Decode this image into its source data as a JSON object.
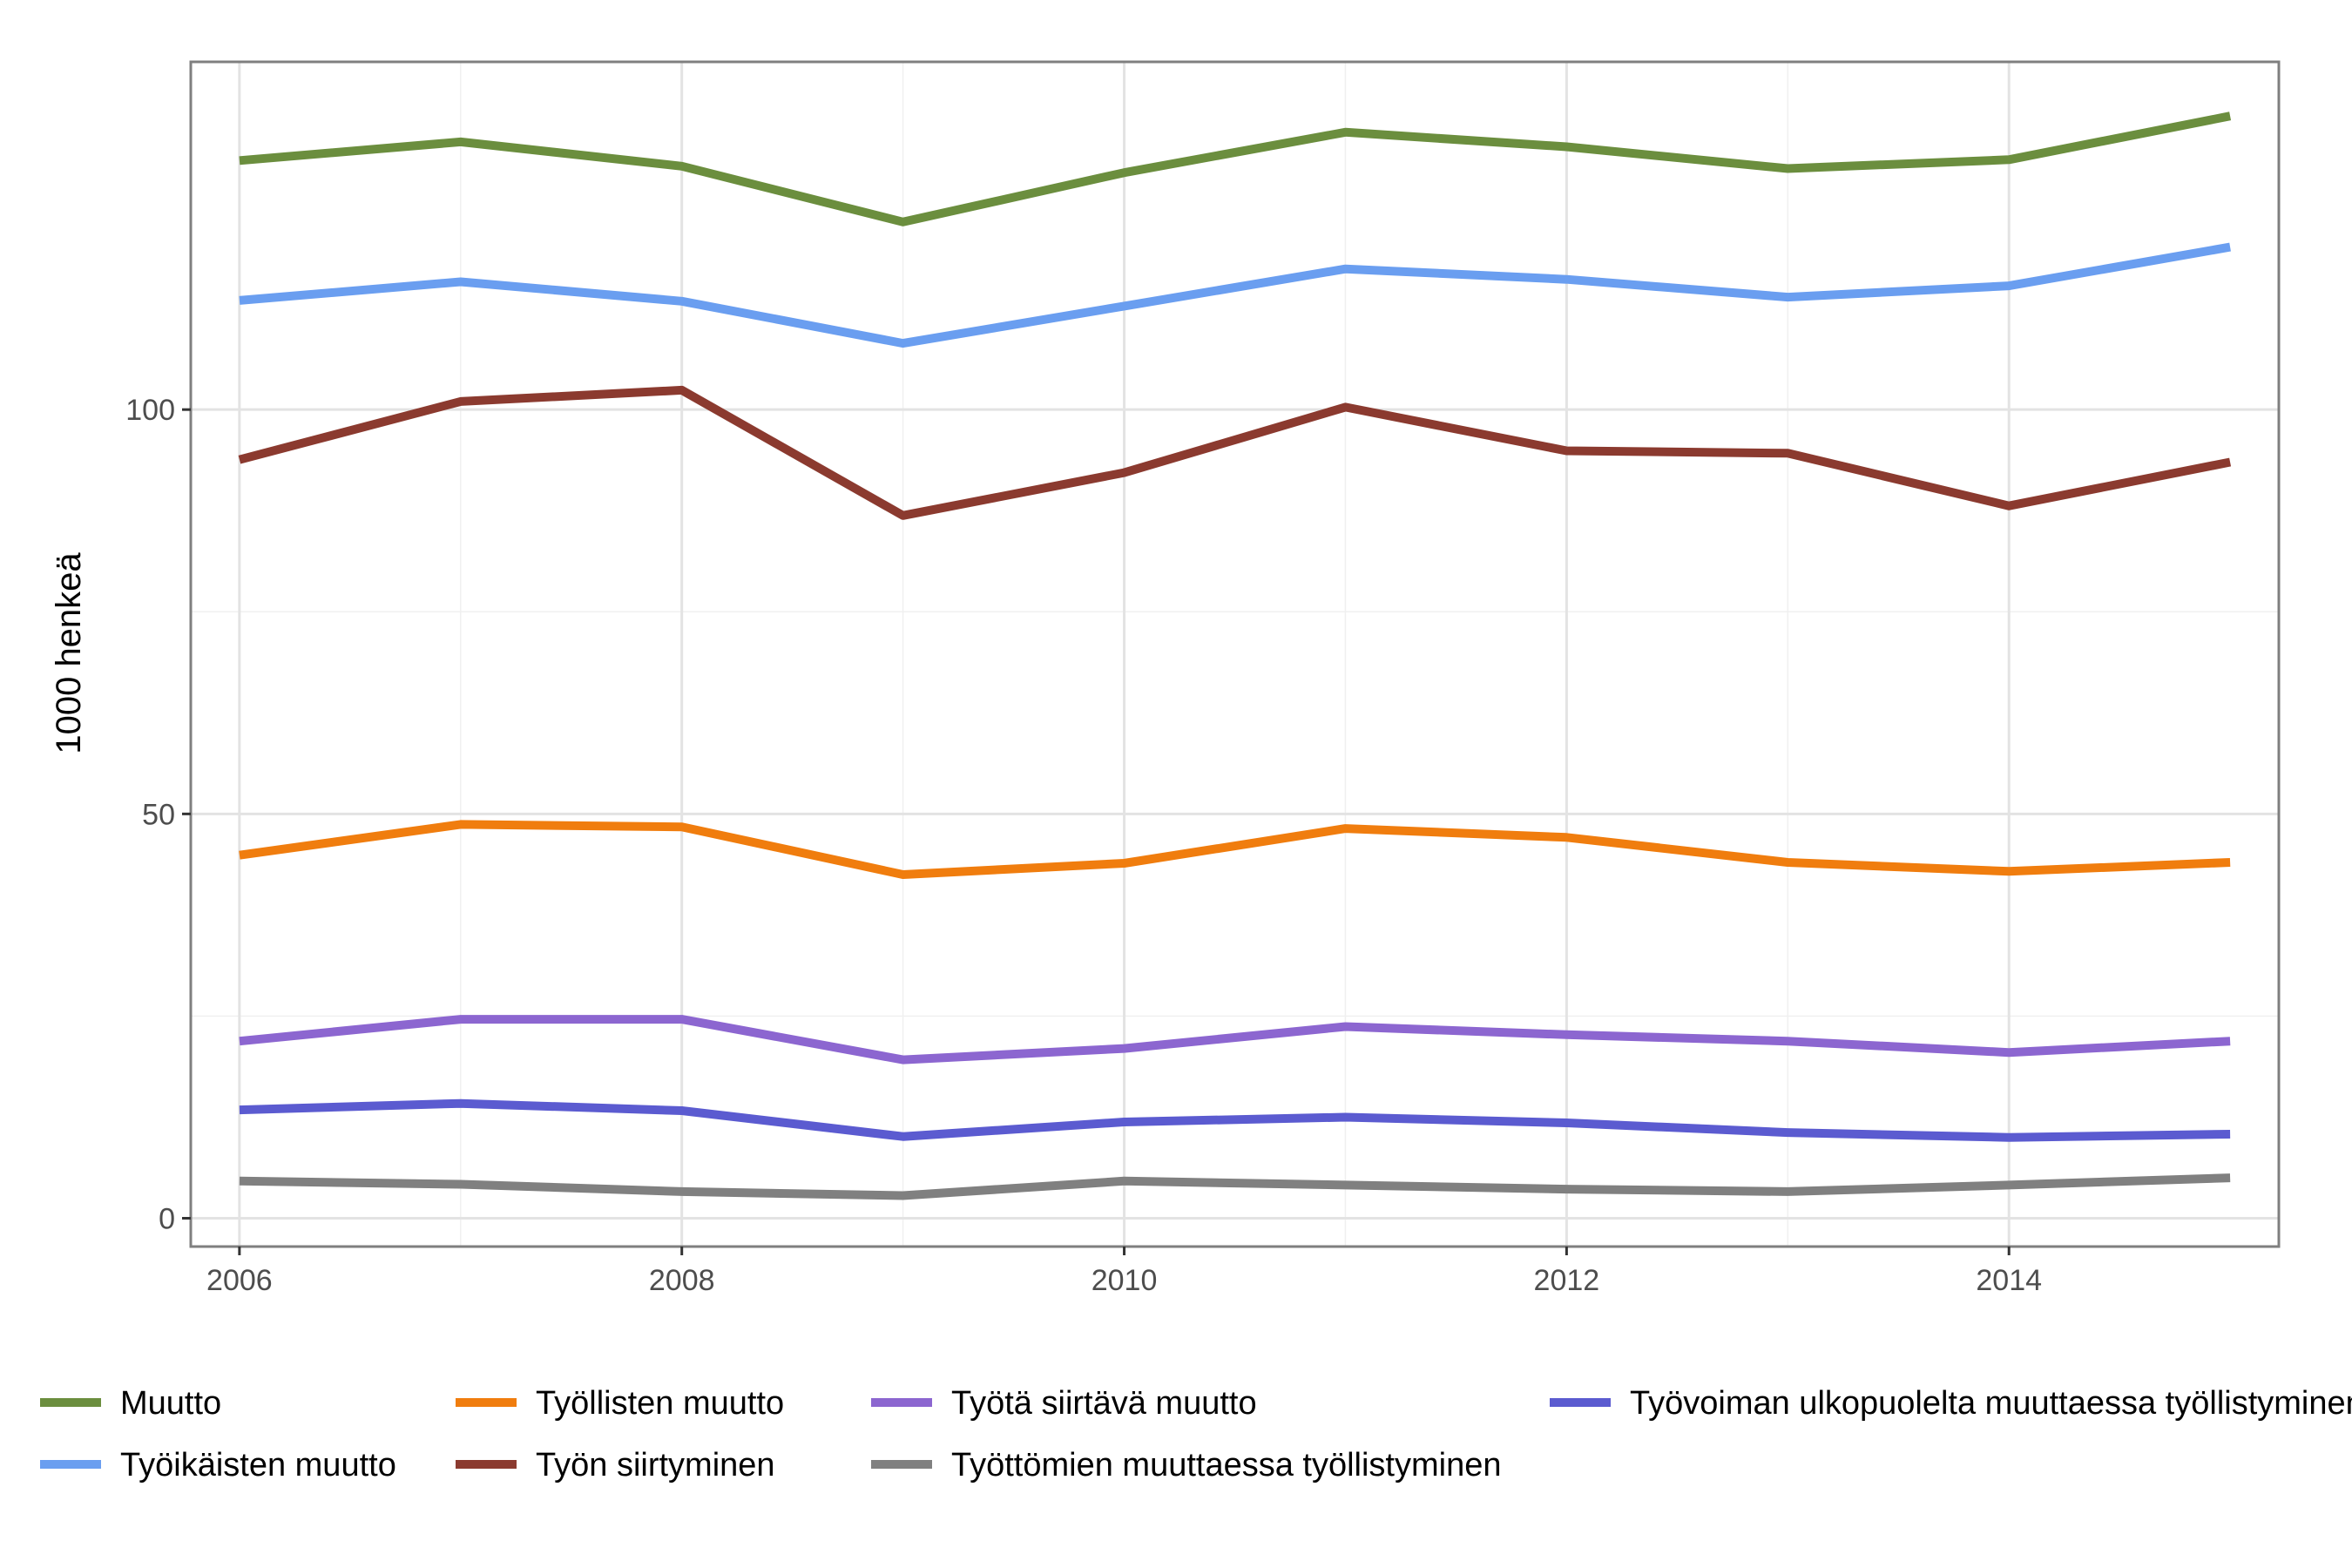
{
  "chart_data": {
    "type": "line",
    "title": "",
    "xlabel": "",
    "ylabel": "1000 henkeä",
    "x": [
      2006,
      2007,
      2008,
      2009,
      2010,
      2011,
      2012,
      2013,
      2014,
      2015
    ],
    "x_ticks": [
      "2006",
      "2008",
      "2010",
      "2012",
      "2014"
    ],
    "y_ticks": [
      "0",
      "50",
      "100"
    ],
    "xlim": [
      2005.78,
      2015.22
    ],
    "ylim": [
      -3.5,
      143
    ],
    "grid": true,
    "legend_position": "bottom",
    "series": [
      {
        "name": "Muutto",
        "color": "#6b8e3e",
        "values": [
          130.8,
          133.1,
          130.1,
          123.2,
          129.3,
          134.3,
          132.5,
          129.8,
          130.9,
          136.3
        ]
      },
      {
        "name": "Työikäisten muutto",
        "color": "#6a9ef0",
        "values": [
          113.5,
          115.8,
          113.4,
          108.2,
          112.8,
          117.4,
          116.1,
          113.9,
          115.3,
          120.1
        ]
      },
      {
        "name": "Työllisten muutto",
        "color": "#f07d0e",
        "values": [
          44.9,
          48.7,
          48.4,
          42.5,
          43.9,
          48.2,
          47.1,
          44.0,
          42.9,
          44.0
        ]
      },
      {
        "name": "Työn siirtyminen",
        "color": "#8b3a2f",
        "values": [
          93.8,
          101.0,
          102.4,
          86.9,
          92.2,
          100.3,
          94.9,
          94.6,
          88.1,
          93.5
        ]
      },
      {
        "name": "Työtä siirtävä muutto",
        "color": "#8c66d0",
        "values": [
          21.9,
          24.6,
          24.6,
          19.6,
          21.0,
          23.7,
          22.7,
          21.9,
          20.5,
          21.9
        ]
      },
      {
        "name": "Työttömien muuttaessa työllistyminen",
        "color": "#808080",
        "values": [
          4.6,
          4.2,
          3.3,
          2.8,
          4.6,
          4.1,
          3.6,
          3.3,
          4.1,
          5.0
        ]
      },
      {
        "name": "Työvoiman ulkopuolelta muuttaessa työllistyminen",
        "color": "#5b5bd0",
        "values": [
          13.4,
          14.2,
          13.3,
          10.1,
          11.9,
          12.5,
          11.8,
          10.6,
          10.0,
          10.4
        ]
      }
    ]
  }
}
